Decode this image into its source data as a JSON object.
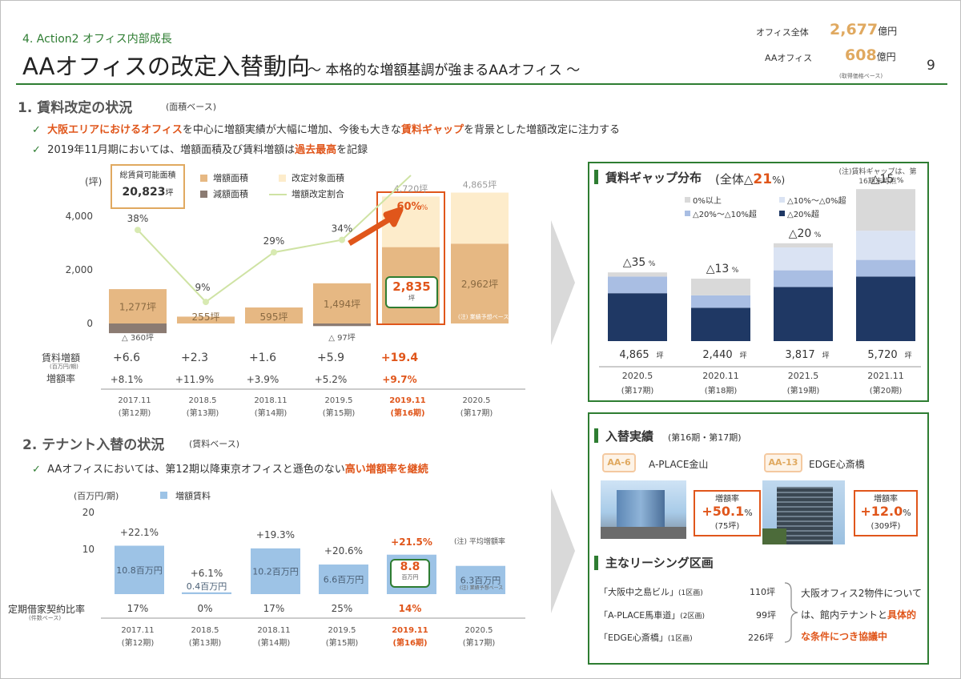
{
  "header": {
    "section": "4. Action2 オフィス内部成長",
    "title": "AAオフィスの改定入替動向",
    "subtitle": "～ 本格的な増額基調が強まるAAオフィス ～",
    "page": "9",
    "summary": [
      {
        "label": "オフィス全体",
        "value": "2,677",
        "unit": "億円"
      },
      {
        "label": "AAオフィス",
        "value": "608",
        "unit": "億円"
      }
    ],
    "summary_note": "(取得価格ベース)"
  },
  "sec1": {
    "title": "1. 賃料改定の状況",
    "basis": "(面積ベース)",
    "b1_hl1": "大阪エリアにおけるオフィス",
    "b1_a": "を中心に増額実績が大幅に増加、今後も大きな",
    "b1_hl2": "賃料ギャップ",
    "b1_b": "を背景とした増額改定に注力する",
    "b2_a": "2019年11月期においては、増額面積及び賃料増額は",
    "b2_hl": "過去最高",
    "b2_b": "を記録"
  },
  "chart1": {
    "unit": "(坪)",
    "total_label": "総賃貸可能面積",
    "total_value": "20,823",
    "total_unit": "坪",
    "legend": [
      "増額面積",
      "改定対象面積",
      "減額面積",
      "増額改定割合"
    ],
    "highlight_value": "2,835",
    "highlight_unit": "坪",
    "arrow_pct": "60",
    "forecast_note": "(注) 業績予想ベース",
    "row_labels": [
      "賃料増額",
      "(百万円/期)",
      "増額率"
    ]
  },
  "chart2": {
    "unit": "(百万円/期)",
    "legend": [
      "増額賃料"
    ],
    "note": "(注) 平均増額率",
    "hl_value": "8.8",
    "hl_unit": "百万円",
    "forecast_note": "(注) 業績予想ベース",
    "row_label": "定期借家契約比率",
    "row_sub": "(件数ベース)"
  },
  "sec2": {
    "title": "2. テナント入替の状況",
    "basis": "(賃料ベース)",
    "b1_a": "AAオフィスにおいては、第12期以降東京オフィスと遜色のない",
    "b1_hl": "高い増額率を継続"
  },
  "gap": {
    "title": "賃料ギャップ分布",
    "overall": "(全体△",
    "overall_num": "21",
    "overall_tail": "%)",
    "note": "(注)賃料ギャップは、第16期末時点",
    "legend": [
      "0%以上",
      "△10%～△0%超",
      "△20%～△10%超",
      "△20%超"
    ]
  },
  "tenant": {
    "title": "入替実績",
    "period": "(第16期・第17期)",
    "p1_tag": "AA-6",
    "p1_name": "A-PLACE金山",
    "p1_label": "増額率",
    "p1_rate": "+50.1",
    "p1_pct": "%",
    "p1_area": "(75坪)",
    "p2_tag": "AA-13",
    "p2_name": "EDGE心斎橋",
    "p2_label": "増額率",
    "p2_rate": "+12.0",
    "p2_pct": "%",
    "p2_area": "(309坪)"
  },
  "leasing": {
    "title": "主なリーシング区画",
    "rows": [
      {
        "name": "「大阪中之島ビル」",
        "units": "(1区画)",
        "area": "110坪"
      },
      {
        "name": "「A-PLACE馬車道」",
        "units": "(2区画)",
        "area": "99坪"
      },
      {
        "name": "「EDGE心斎橋」",
        "units": "(1区画)",
        "area": "226坪"
      }
    ],
    "comment_a": "大阪オフィス2物件については、館内テナントと",
    "comment_hl": "具体的な条件につき協議中"
  },
  "chart_data": [
    {
      "type": "bar",
      "title": "",
      "categories": [
        "2017.11",
        "2018.5",
        "2018.11",
        "2019.5",
        "2019.11",
        "2020.5"
      ],
      "category_sub": [
        "(第12期)",
        "(第13期)",
        "(第14期)",
        "(第15期)",
        "(第16期)",
        "(第17期)"
      ],
      "series": [
        {
          "name": "増額面積",
          "values": [
            1277,
            255,
            595,
            1494,
            2835,
            2962
          ]
        },
        {
          "name": "減額面積",
          "values": [
            -360,
            null,
            null,
            -97,
            null,
            null
          ]
        },
        {
          "name": "改定対象面積",
          "values": [
            null,
            null,
            null,
            null,
            4720,
            4865
          ]
        },
        {
          "name": "増額改定割合",
          "values": [
            38,
            9,
            29,
            34,
            60,
            null
          ]
        }
      ],
      "bar_labels": [
        "1,277坪",
        "255坪",
        "595坪",
        "1,494坪",
        "",
        "2,962坪"
      ],
      "neg_labels": [
        "△ 360坪",
        "",
        "",
        "△ 97坪",
        "",
        ""
      ],
      "total_labels": [
        "",
        "",
        "",
        "",
        "4,720坪",
        "4,865坪"
      ],
      "ratio_labels": [
        "38%",
        "9%",
        "29%",
        "34%",
        "60%",
        ""
      ],
      "yticks": [
        "0",
        "2,000",
        "4,000"
      ],
      "rent_increase": [
        "+6.6",
        "+2.3",
        "+1.6",
        "+5.9",
        "+19.4",
        ""
      ],
      "increase_rate": [
        "+8.1",
        "+11.9",
        "+3.9",
        "+5.2",
        "+9.7",
        ""
      ],
      "ylabel": "(坪)",
      "ylim": [
        -400,
        4900
      ]
    },
    {
      "type": "bar",
      "title": "",
      "categories": [
        "2017.11",
        "2018.5",
        "2018.11",
        "2019.5",
        "2019.11",
        "2020.5"
      ],
      "category_sub": [
        "(第12期)",
        "(第13期)",
        "(第14期)",
        "(第15期)",
        "(第16期)",
        "(第17期)"
      ],
      "series": [
        {
          "name": "増額賃料",
          "values": [
            10.8,
            0.4,
            10.2,
            6.6,
            8.8,
            6.3
          ]
        }
      ],
      "bar_labels": [
        "10.8百万円",
        "0.4百万円",
        "10.2百万円",
        "6.6百万円",
        "",
        "6.3百万円"
      ],
      "avg_rate": [
        "+22.1",
        "+6.1",
        "+19.3",
        "+20.6",
        "+21.5",
        ""
      ],
      "fixed_term_ratio": [
        "17%",
        "0%",
        "17%",
        "25%",
        "14%",
        ""
      ],
      "yticks": [
        "10",
        "20"
      ],
      "ylabel": "(百万円/期)",
      "ylim": [
        0,
        20
      ]
    },
    {
      "type": "bar",
      "title": "賃料ギャップ分布",
      "categories": [
        "2020.5",
        "2020.11",
        "2021.5",
        "2021.11"
      ],
      "category_sub": [
        "(第17期)",
        "(第18期)",
        "(第19期)",
        "(第20期)"
      ],
      "series": [
        {
          "name": "△20%超",
          "values": [
            2.3,
            1.6,
            2.6,
            3.1
          ]
        },
        {
          "name": "△20%～△10%超",
          "values": [
            0.8,
            0.6,
            0.8,
            0.8
          ]
        },
        {
          "name": "△10%～△0%超",
          "values": [
            0.0,
            0.0,
            1.1,
            1.4
          ]
        },
        {
          "name": "0%以上",
          "values": [
            0.2,
            0.8,
            0.2,
            2.0
          ]
        }
      ],
      "gap_labels": [
        "△35",
        "△13",
        "△20",
        "△15"
      ],
      "area_labels": [
        "4,865",
        "2,440",
        "3,817",
        "5,720"
      ],
      "stacked": true
    }
  ]
}
